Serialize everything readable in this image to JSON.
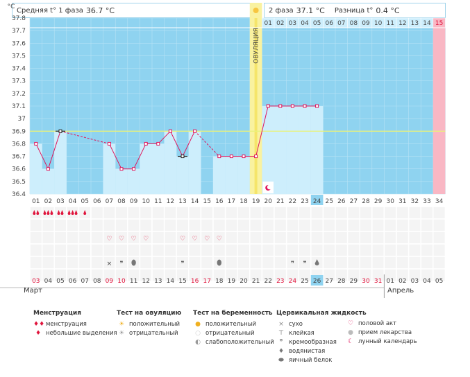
{
  "y_unit": "°C",
  "header": {
    "phase1_label": "Средняя t° 1 фаза",
    "phase1_value": "36.7 °C",
    "phase2_label": "2 фаза",
    "phase2_value": "37.1 °C",
    "diff_label": "Разница t°",
    "diff_value": "0.4 °C"
  },
  "ovulation_label": "ОВУЛЯЦИЯ",
  "chart_data": {
    "type": "line",
    "ylim": [
      36.4,
      37.8
    ],
    "yticks": [
      "36.4",
      "36.5",
      "36.6",
      "36.7",
      "36.8",
      "36.9",
      "37",
      "37.1",
      "37.2",
      "37.3",
      "37.4",
      "37.5",
      "37.6",
      "37.7",
      "37.8"
    ],
    "coverline": 36.9,
    "cycle_days": [
      "01",
      "02",
      "03",
      "04",
      "05",
      "06",
      "07",
      "08",
      "09",
      "10",
      "11",
      "12",
      "13",
      "14",
      "15",
      "16",
      "17",
      "18",
      "19",
      "20",
      "21",
      "22",
      "23",
      "24",
      "25",
      "26",
      "27",
      "28",
      "29",
      "30",
      "31",
      "32",
      "33",
      "34"
    ],
    "current_day": "24",
    "phase2_days": [
      "01",
      "02",
      "03",
      "04",
      "05",
      "06",
      "07",
      "08",
      "09",
      "10",
      "11",
      "12",
      "13",
      "14",
      "15"
    ],
    "temps": [
      36.8,
      36.6,
      36.9,
      null,
      null,
      null,
      36.8,
      36.6,
      36.6,
      36.8,
      36.8,
      36.9,
      36.7,
      36.9,
      null,
      36.7,
      36.7,
      36.7,
      36.7,
      37.1,
      37.1,
      37.1,
      37.1,
      37.1,
      null,
      null,
      null,
      null,
      null,
      null,
      null,
      null,
      null,
      null
    ],
    "disturbed_days": [
      3,
      13
    ],
    "calendar_dates": [
      "03",
      "04",
      "05",
      "06",
      "07",
      "08",
      "09",
      "10",
      "11",
      "12",
      "13",
      "14",
      "15",
      "16",
      "17",
      "18",
      "19",
      "20",
      "21",
      "22",
      "23",
      "24",
      "25",
      "26",
      "27",
      "28",
      "29",
      "30",
      "31",
      "01",
      "02",
      "03",
      "04",
      "05"
    ],
    "weekend_dates_index": [
      0,
      6,
      7,
      13,
      14,
      20,
      21,
      27,
      28
    ],
    "current_date_index": 23,
    "month_1": "Март",
    "month_2": "Апрель"
  },
  "rows": {
    "menstruation": [
      2,
      3,
      2,
      3,
      1,
      0,
      0,
      0,
      0,
      0,
      0,
      0,
      0,
      0,
      0,
      0,
      0,
      0,
      0,
      0,
      0,
      0,
      0,
      0,
      0,
      0,
      0,
      0,
      0,
      0,
      0,
      0,
      0,
      0
    ],
    "sex": [
      0,
      0,
      0,
      0,
      0,
      0,
      1,
      1,
      1,
      1,
      0,
      0,
      1,
      1,
      1,
      1,
      0,
      0,
      0,
      0,
      0,
      0,
      0,
      0,
      0,
      0,
      0,
      0,
      0,
      0,
      0,
      0,
      0,
      0
    ],
    "fluid": [
      "",
      "",
      "",
      "",
      "",
      "",
      "dry",
      "creamy",
      "eggwhite",
      "",
      "",
      "",
      "creamy",
      "",
      "",
      "eggwhite",
      "",
      "",
      "",
      "",
      "",
      "creamy",
      "creamy",
      "watery",
      "",
      "",
      "",
      "",
      "",
      "",
      "",
      "",
      "",
      ""
    ]
  },
  "legend": {
    "menstruation_title": "Менструация",
    "menstruation_items": [
      "менструация",
      "небольшие выделения"
    ],
    "ovulation_test_title": "Тест на овуляцию",
    "ovulation_test_items": [
      "положительный",
      "отрицательный"
    ],
    "pregnancy_test_title": "Тест на беременность",
    "pregnancy_test_items": [
      "положительный",
      "отрицательный",
      "слабоположительный"
    ],
    "cervical_title": "Цервикальная жидкость",
    "cervical_items": [
      "сухо",
      "клейкая",
      "кремообразная",
      "водянистая",
      "яичный белок"
    ],
    "other_items": [
      "половой акт",
      "прием лекарства",
      "лунный календарь"
    ]
  },
  "colors": {
    "sky": "#8fd3f0",
    "phase1_bar": "#cdeefc",
    "ovulation": "#f9f2a0",
    "line": "#e0145a",
    "coverline": "#e9f27a",
    "pink_cell": "#f9b7c4"
  }
}
